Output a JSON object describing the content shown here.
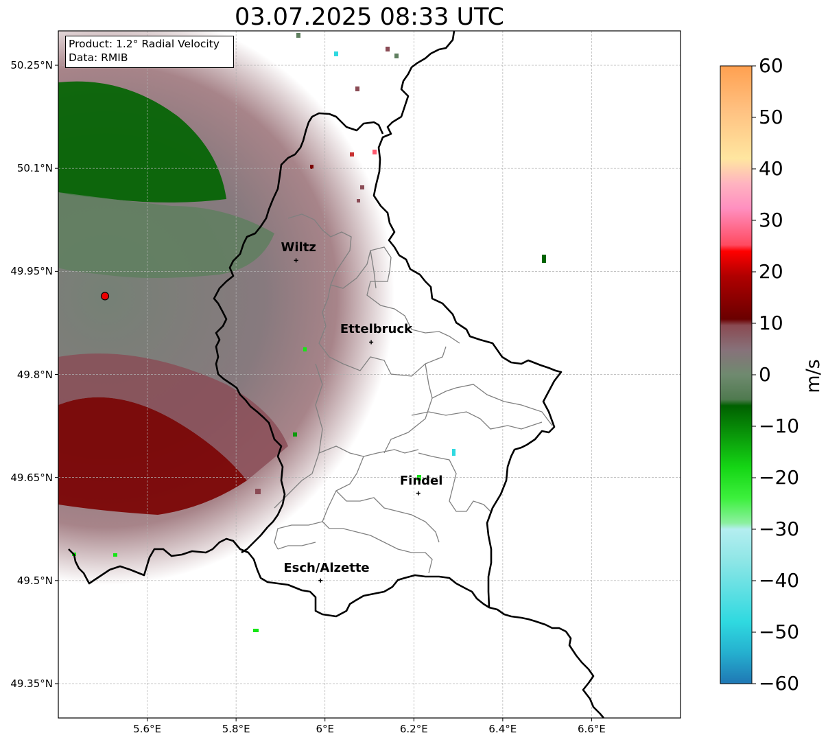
{
  "title": "03.07.2025 08:33 UTC",
  "info_box": {
    "product": "Product: 1.2° Radial Velocity",
    "source": "Data: RMIB"
  },
  "map": {
    "lon_range": [
      5.4,
      6.8
    ],
    "lat_range": [
      49.3,
      50.3
    ],
    "lat_ticks": [
      {
        "value": 50.25,
        "label": "50.25°N"
      },
      {
        "value": 50.1,
        "label": "50.1°N"
      },
      {
        "value": 49.95,
        "label": "49.95°N"
      },
      {
        "value": 49.8,
        "label": "49.8°N"
      },
      {
        "value": 49.65,
        "label": "49.65°N"
      },
      {
        "value": 49.5,
        "label": "49.5°N"
      },
      {
        "value": 49.35,
        "label": "49.35°N"
      }
    ],
    "lon_ticks": [
      {
        "value": 5.6,
        "label": "5.6°E"
      },
      {
        "value": 5.8,
        "label": "5.8°E"
      },
      {
        "value": 6.0,
        "label": "6°E"
      },
      {
        "value": 6.2,
        "label": "6.2°E"
      },
      {
        "value": 6.4,
        "label": "6.4°E"
      },
      {
        "value": 6.6,
        "label": "6.6°E"
      }
    ],
    "grid": true,
    "radar_site": {
      "lon": 5.505,
      "lat": 49.914
    },
    "cities": [
      {
        "name": "Wiltz",
        "lon": 5.935,
        "lat": 49.966
      },
      {
        "name": "Ettelbruck",
        "lon": 6.104,
        "lat": 49.847
      },
      {
        "name": "Findel",
        "lon": 6.21,
        "lat": 49.627
      },
      {
        "name": "Esch/Alzette",
        "lon": 5.99,
        "lat": 49.5
      }
    ]
  },
  "colorbar": {
    "label": "m/s",
    "min": -60,
    "max": 60,
    "ticks": [
      {
        "value": 60,
        "label": "60"
      },
      {
        "value": 50,
        "label": "50"
      },
      {
        "value": 40,
        "label": "40"
      },
      {
        "value": 30,
        "label": "30"
      },
      {
        "value": 20,
        "label": "20"
      },
      {
        "value": 10,
        "label": "10"
      },
      {
        "value": 0,
        "label": "0"
      },
      {
        "value": -10,
        "label": "−10"
      },
      {
        "value": -20,
        "label": "−20"
      },
      {
        "value": -30,
        "label": "−30"
      },
      {
        "value": -40,
        "label": "−40"
      },
      {
        "value": -50,
        "label": "−50"
      },
      {
        "value": -60,
        "label": "−60"
      }
    ],
    "colors": {
      "cyan": "#2fd9e0",
      "light_cyan": "#b4eef0",
      "green_bright": "#15e615",
      "green": "#0b9a0b",
      "green_dark": "#006400",
      "grey_green": "#5f7f5f",
      "grey_mauve": "#7f6c72",
      "mauve": "#8a4b55",
      "dark_red": "#7a0000",
      "red": "#ee0000",
      "pink": "#ff5a70",
      "light_pink": "#ffb0c0",
      "peach": "#ffe3a0",
      "orange": "#ffa050"
    }
  }
}
